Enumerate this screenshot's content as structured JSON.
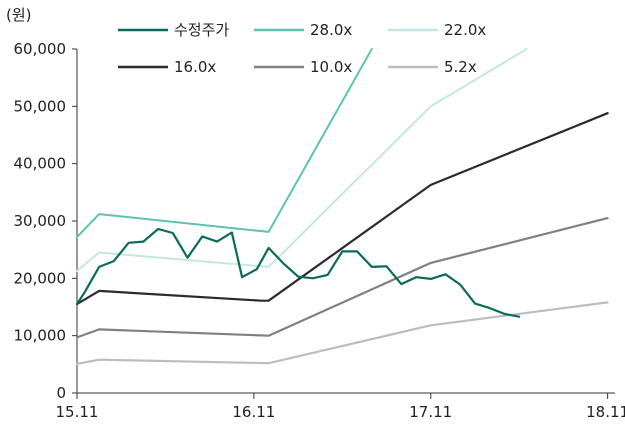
{
  "chart_data": {
    "type": "line",
    "unit_label": "(원)",
    "x_ticks": [
      "15.11",
      "16.11",
      "17.11",
      "18.11"
    ],
    "y_ticks": [
      "0",
      "10,000",
      "20,000",
      "30,000",
      "40,000",
      "50,000",
      "60,000"
    ],
    "ylim": [
      0,
      60000
    ],
    "xlim": [
      0,
      36.5
    ],
    "grid": false,
    "legend_position": "top",
    "series": [
      {
        "name": "수정주가",
        "color": "#0b6b5b",
        "width": 2.2,
        "points": [
          [
            0,
            15500
          ],
          [
            0.5,
            17500
          ],
          [
            1.5,
            22000
          ],
          [
            2.5,
            23000
          ],
          [
            3.5,
            26200
          ],
          [
            4.5,
            26400
          ],
          [
            5.5,
            28600
          ],
          [
            6.5,
            27900
          ],
          [
            7.5,
            23600
          ],
          [
            8.5,
            27300
          ],
          [
            9.5,
            26400
          ],
          [
            10.5,
            28000
          ],
          [
            11.2,
            20200
          ],
          [
            12.2,
            21600
          ],
          [
            13,
            25300
          ],
          [
            14,
            22600
          ],
          [
            15,
            20300
          ],
          [
            16,
            20000
          ],
          [
            17,
            20600
          ],
          [
            18,
            24700
          ],
          [
            19,
            24700
          ],
          [
            20,
            22000
          ],
          [
            21,
            22100
          ],
          [
            22,
            19000
          ],
          [
            23,
            20200
          ],
          [
            24,
            19900
          ],
          [
            25,
            20700
          ],
          [
            26,
            18900
          ],
          [
            27,
            15600
          ],
          [
            28,
            14800
          ],
          [
            29,
            13800
          ],
          [
            30,
            13300
          ]
        ]
      },
      {
        "name": "28.0x",
        "color": "#5cc3b2",
        "width": 2,
        "points": [
          [
            0,
            27200
          ],
          [
            1.5,
            31200
          ],
          [
            13,
            28100
          ],
          [
            20,
            60000
          ]
        ]
      },
      {
        "name": "22.0x",
        "color": "#c3e8e0",
        "width": 2,
        "points": [
          [
            0,
            21300
          ],
          [
            1.5,
            24500
          ],
          [
            13,
            22000
          ],
          [
            24,
            50000
          ],
          [
            30.5,
            60000
          ]
        ]
      },
      {
        "name": "16.0x",
        "color": "#2b2b2b",
        "width": 2.2,
        "points": [
          [
            0,
            15500
          ],
          [
            1.5,
            17800
          ],
          [
            12.5,
            16100
          ],
          [
            13,
            16100
          ],
          [
            24,
            36300
          ],
          [
            36,
            48800
          ]
        ]
      },
      {
        "name": "10.0x",
        "color": "#808080",
        "width": 2.2,
        "points": [
          [
            0,
            9700
          ],
          [
            1.5,
            11100
          ],
          [
            13,
            10000
          ],
          [
            24,
            22700
          ],
          [
            36,
            30500
          ]
        ]
      },
      {
        "name": "5.2x",
        "color": "#bdbdbd",
        "width": 2.2,
        "points": [
          [
            0,
            5100
          ],
          [
            1.5,
            5800
          ],
          [
            13,
            5200
          ],
          [
            24,
            11800
          ],
          [
            36,
            15800
          ]
        ]
      }
    ]
  }
}
